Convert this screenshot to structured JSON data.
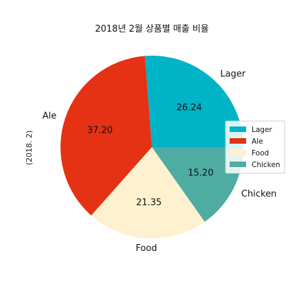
{
  "chart_data": {
    "type": "pie",
    "title": "2018년 2월 상품별 매출 비율",
    "ylabel": "(2018. 2)",
    "categories": [
      "Lager",
      "Ale",
      "Food",
      "Chicken"
    ],
    "values": [
      26.24,
      37.2,
      21.35,
      15.2
    ],
    "value_labels": [
      "26.24",
      "37.20",
      "21.35",
      "15.20"
    ],
    "colors": [
      "#00b3c6",
      "#e53114",
      "#fdf1d0",
      "#4eaca2"
    ],
    "start_angle_deg": 0,
    "direction": "counterclockwise",
    "legend": {
      "placement": "right",
      "entries": [
        "Lager",
        "Ale",
        "Food",
        "Chicken"
      ]
    }
  }
}
